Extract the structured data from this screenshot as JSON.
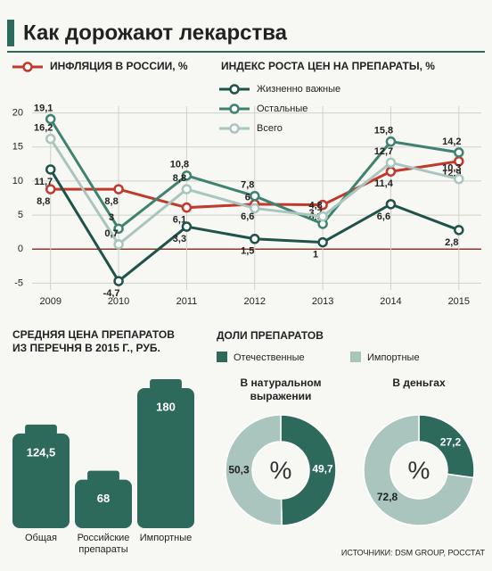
{
  "title": "Как дорожают лекарства",
  "source": "ИСТОЧНИКИ: DSM GROUP, РОССТАТ",
  "chart_data": [
    {
      "type": "line",
      "legend_title": "ИНДЕКС РОСТА ЦЕН НА ПРЕПАРАТЫ, %",
      "x": [
        2009,
        2010,
        2011,
        2012,
        2013,
        2014,
        2015
      ],
      "xlim": [
        2008.65,
        2015.33
      ],
      "xticks": [
        2009,
        2010,
        2011,
        2012,
        2013,
        2014,
        2015
      ],
      "ylim": [
        -6,
        21
      ],
      "yticks": [
        20,
        15,
        10,
        5,
        0,
        -5
      ],
      "grid": true,
      "series": [
        {
          "name": "ИНФЛЯЦИЯ В РОССИИ, %",
          "color": "#c0392b",
          "values": [
            8.8,
            8.8,
            6.1,
            6.6,
            6.5,
            11.4,
            12.9
          ],
          "value_labels": [
            "8,8",
            "8,8",
            "6,1",
            "6,6",
            "6,5",
            "11,4",
            "12,9"
          ]
        },
        {
          "name": "Жизненно важные",
          "color": "#1f5248",
          "values": [
            11.7,
            -4.7,
            3.3,
            1.5,
            1,
            6.6,
            2.8
          ],
          "value_labels": [
            "11,7",
            "-4,7",
            "3,3",
            "1,5",
            "1",
            "6,6",
            "2,8"
          ]
        },
        {
          "name": "Остальные",
          "color": "#3f8270",
          "values": [
            19.1,
            3,
            10.8,
            7.8,
            3.7,
            15.8,
            14.2
          ],
          "value_labels": [
            "19,1",
            "3",
            "10,8",
            "7,8",
            "3,7",
            "15,8",
            "14,2"
          ]
        },
        {
          "name": "Всего",
          "color": "#a8c6be",
          "values": [
            16.2,
            0.7,
            8.8,
            6,
            4.8,
            12.7,
            10.3
          ],
          "value_labels": [
            "16,2",
            "0,7",
            "8,8",
            "6",
            "4,8",
            "12,7",
            "10,3"
          ]
        }
      ]
    },
    {
      "type": "bar",
      "title": "СРЕДНЯЯ ЦЕНА ПРЕПАРАТОВ ИЗ ПЕРЕЧНЯ В 2015 Г., РУБ.",
      "categories": [
        "Общая",
        "Российские препараты",
        "Импортные"
      ],
      "values": [
        124.5,
        68,
        180
      ],
      "value_labels": [
        "124,5",
        "68",
        "180"
      ],
      "color": "#2e6a5c"
    },
    {
      "type": "pie",
      "title": "ДОЛИ ПРЕПАРАТОВ",
      "center_label": "%",
      "categories": [
        "Отечественные",
        "Импортные"
      ],
      "colors": [
        "#2e6a5c",
        "#a9c5bd"
      ],
      "series": [
        {
          "name": "В натуральном выражении",
          "values": [
            49.7,
            50.3
          ],
          "value_labels": [
            "49,7",
            "50,3"
          ]
        },
        {
          "name": "В деньгах",
          "values": [
            27.2,
            72.8
          ],
          "value_labels": [
            "27,2",
            "72,8"
          ]
        }
      ]
    }
  ]
}
